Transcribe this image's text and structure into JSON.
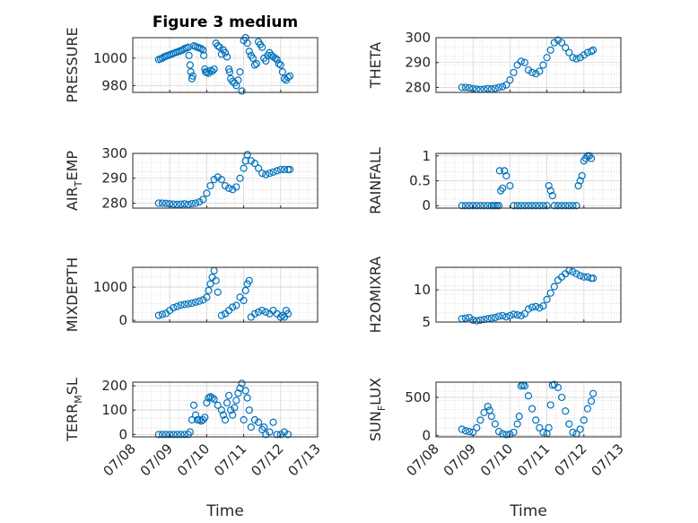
{
  "figure": {
    "title": "Figure 3 medium",
    "marker_color": "#0072BD"
  },
  "chart_data": [
    {
      "type": "scatter",
      "ylabel": "PRESSURE",
      "ylim": [
        975,
        1015
      ],
      "yticks": [
        980,
        1000
      ],
      "xlim": [
        0,
        5
      ],
      "xticks": [
        0,
        1,
        2,
        3,
        4,
        5
      ],
      "xticklabels": [],
      "xlabel": "",
      "grid": true,
      "x": [
        0.7,
        0.75,
        0.8,
        0.85,
        0.9,
        0.95,
        1.0,
        1.05,
        1.1,
        1.15,
        1.2,
        1.25,
        1.3,
        1.35,
        1.4,
        1.45,
        1.5,
        1.52,
        1.55,
        1.57,
        1.6,
        1.62,
        1.65,
        1.7,
        1.75,
        1.8,
        1.85,
        1.9,
        1.92,
        1.95,
        1.97,
        2.0,
        2.05,
        2.1,
        2.15,
        2.2,
        2.25,
        2.3,
        2.35,
        2.4,
        2.45,
        2.5,
        2.55,
        2.6,
        2.62,
        2.65,
        2.7,
        2.75,
        2.8,
        2.85,
        2.9,
        2.95,
        3.0,
        3.05,
        3.1,
        3.15,
        3.2,
        3.25,
        3.3,
        3.35,
        3.4,
        3.45,
        3.5,
        3.55,
        3.6,
        3.65,
        3.7,
        3.75,
        3.8,
        3.85,
        3.9,
        3.95,
        4.0,
        4.05,
        4.1,
        4.15,
        4.2,
        4.25
      ],
      "y": [
        999,
        999.5,
        1000,
        1001,
        1001.5,
        1002,
        1002.5,
        1003,
        1003.5,
        1004,
        1004.5,
        1005,
        1005.5,
        1006,
        1007,
        1007.5,
        1008,
        1002,
        995,
        990,
        985,
        987,
        1009,
        1008.5,
        1008,
        1007.5,
        1007,
        1006,
        1002,
        992,
        990,
        989.5,
        989,
        991,
        990.5,
        992,
        1011,
        1009,
        1008,
        1003,
        1006,
        1004,
        1001,
        992,
        990,
        985,
        983,
        982,
        980,
        984,
        990,
        976,
        1013,
        1015,
        1011,
        1005,
        1002,
        1000,
        995,
        996,
        1012,
        1010,
        1008,
        1000,
        998,
        1002,
        1004,
        1002,
        1001,
        1000,
        999,
        996,
        995,
        990,
        985,
        984,
        986,
        987
      ]
    },
    {
      "type": "scatter",
      "ylabel": "THETA",
      "ylim": [
        278,
        300
      ],
      "yticks": [
        280,
        290,
        300
      ],
      "xlim": [
        0,
        5
      ],
      "xticks": [
        0,
        1,
        2,
        3,
        4,
        5
      ],
      "xticklabels": [],
      "xlabel": "",
      "grid": true,
      "x": [
        0.7,
        0.8,
        0.9,
        1.0,
        1.1,
        1.2,
        1.3,
        1.4,
        1.5,
        1.6,
        1.7,
        1.8,
        1.9,
        2.0,
        2.1,
        2.2,
        2.3,
        2.4,
        2.5,
        2.6,
        2.7,
        2.8,
        2.9,
        3.0,
        3.1,
        3.2,
        3.3,
        3.4,
        3.5,
        3.6,
        3.7,
        3.8,
        3.9,
        4.0,
        4.1,
        4.2,
        4.25
      ],
      "y": [
        280,
        280,
        279.8,
        279.5,
        279.3,
        279.2,
        279.3,
        279.5,
        279.4,
        279.6,
        280,
        280.3,
        281,
        283,
        286,
        289,
        290.5,
        290,
        287,
        286,
        285.5,
        286.5,
        289,
        292,
        295,
        298,
        299,
        298,
        296,
        294,
        292,
        291.5,
        292,
        293,
        294,
        294.5,
        295
      ]
    },
    {
      "type": "scatter",
      "ylabel": "AIR_T_EMP",
      "ylim": [
        278,
        300
      ],
      "yticks": [
        280,
        290,
        300
      ],
      "xlim": [
        0,
        5
      ],
      "xticks": [
        0,
        1,
        2,
        3,
        4,
        5
      ],
      "xticklabels": [],
      "xlabel": "",
      "grid": true,
      "x": [
        0.7,
        0.8,
        0.9,
        1.0,
        1.1,
        1.2,
        1.3,
        1.4,
        1.5,
        1.6,
        1.7,
        1.8,
        1.9,
        2.0,
        2.1,
        2.2,
        2.3,
        2.4,
        2.5,
        2.6,
        2.7,
        2.8,
        2.9,
        3.0,
        3.05,
        3.1,
        3.2,
        3.3,
        3.4,
        3.5,
        3.6,
        3.7,
        3.8,
        3.9,
        4.0,
        4.1,
        4.2,
        4.25
      ],
      "y": [
        280,
        280,
        279.9,
        279.7,
        279.6,
        279.5,
        279.6,
        279.7,
        279.5,
        279.8,
        280,
        280.5,
        281.5,
        284,
        287,
        289.5,
        290.5,
        289.5,
        287,
        286,
        285.5,
        286.5,
        290,
        294,
        297,
        299.5,
        297,
        296,
        294,
        292,
        291.5,
        292,
        292.5,
        293,
        293.5,
        293.5,
        293.5,
        293.5
      ]
    },
    {
      "type": "scatter",
      "ylabel": "RAINFALL",
      "ylim": [
        -0.05,
        1.05
      ],
      "yticks": [
        0,
        0.5,
        1
      ],
      "xlim": [
        0,
        5
      ],
      "xticks": [
        0,
        1,
        2,
        3,
        4,
        5
      ],
      "xticklabels": [],
      "xlabel": "",
      "grid": true,
      "x": [
        0.7,
        0.8,
        0.9,
        1.0,
        1.1,
        1.2,
        1.3,
        1.4,
        1.5,
        1.55,
        1.6,
        1.65,
        1.7,
        1.72,
        1.75,
        1.8,
        1.85,
        1.9,
        2.0,
        2.1,
        2.2,
        2.3,
        2.4,
        2.5,
        2.6,
        2.7,
        2.8,
        2.9,
        3.0,
        3.05,
        3.1,
        3.15,
        3.2,
        3.3,
        3.4,
        3.5,
        3.6,
        3.7,
        3.8,
        3.85,
        3.9,
        3.95,
        4.0,
        4.05,
        4.1,
        4.15,
        4.2
      ],
      "y": [
        0,
        0,
        0,
        0,
        0,
        0,
        0,
        0,
        0,
        0,
        0,
        0,
        0,
        0.7,
        0.3,
        0.35,
        0.7,
        0.6,
        0.4,
        0,
        0,
        0,
        0,
        0,
        0,
        0,
        0,
        0,
        0,
        0.4,
        0.3,
        0.2,
        0,
        0,
        0,
        0,
        0,
        0,
        0,
        0.4,
        0.5,
        0.6,
        0.9,
        0.95,
        1.0,
        1.0,
        0.95
      ]
    },
    {
      "type": "scatter",
      "ylabel": "MIXDEPTH",
      "ylim": [
        -50,
        1600
      ],
      "yticks": [
        0,
        1000
      ],
      "xlim": [
        0,
        5
      ],
      "xticks": [
        0,
        1,
        2,
        3,
        4,
        5
      ],
      "xticklabels": [],
      "xlabel": "",
      "grid": true,
      "x": [
        0.7,
        0.8,
        0.9,
        1.0,
        1.1,
        1.2,
        1.3,
        1.4,
        1.5,
        1.6,
        1.7,
        1.8,
        1.9,
        2.0,
        2.05,
        2.1,
        2.15,
        2.2,
        2.25,
        2.3,
        2.4,
        2.5,
        2.6,
        2.7,
        2.8,
        2.9,
        3.0,
        3.05,
        3.1,
        3.15,
        3.2,
        3.3,
        3.4,
        3.5,
        3.6,
        3.7,
        3.8,
        3.9,
        4.0,
        4.05,
        4.1,
        4.15,
        4.2
      ],
      "y": [
        150,
        180,
        210,
        300,
        380,
        420,
        460,
        480,
        500,
        520,
        550,
        580,
        620,
        700,
        900,
        1100,
        1300,
        1500,
        1200,
        850,
        150,
        200,
        300,
        400,
        450,
        700,
        600,
        900,
        1100,
        1200,
        100,
        200,
        250,
        300,
        250,
        200,
        300,
        200,
        100,
        150,
        100,
        300,
        200
      ]
    },
    {
      "type": "scatter",
      "ylabel": "H2OMIXRA",
      "ylim": [
        5,
        13.5
      ],
      "yticks": [
        5,
        10
      ],
      "xlim": [
        0,
        5
      ],
      "xticks": [
        0,
        1,
        2,
        3,
        4,
        5
      ],
      "xticklabels": [],
      "xlabel": "",
      "grid": true,
      "x": [
        0.7,
        0.8,
        0.9,
        1.0,
        1.1,
        1.2,
        1.3,
        1.4,
        1.5,
        1.6,
        1.7,
        1.8,
        1.9,
        2.0,
        2.1,
        2.2,
        2.3,
        2.4,
        2.5,
        2.6,
        2.7,
        2.8,
        2.9,
        3.0,
        3.1,
        3.2,
        3.3,
        3.4,
        3.5,
        3.6,
        3.7,
        3.8,
        3.9,
        4.0,
        4.1,
        4.2,
        4.25
      ],
      "y": [
        5.5,
        5.6,
        5.7,
        5.3,
        5.2,
        5.3,
        5.4,
        5.5,
        5.6,
        5.7,
        5.9,
        6.0,
        5.8,
        6.0,
        6.2,
        6.1,
        6.0,
        6.3,
        7.0,
        7.3,
        7.4,
        7.2,
        7.5,
        8.5,
        9.5,
        10.5,
        11.5,
        12.0,
        12.5,
        13.0,
        12.8,
        12.5,
        12.2,
        12.0,
        12.0,
        11.8,
        11.8
      ]
    },
    {
      "type": "scatter",
      "ylabel": "TERR_M_SL",
      "ylim": [
        -10,
        215
      ],
      "yticks": [
        0,
        100,
        200
      ],
      "xlim": [
        0,
        5
      ],
      "xticks": [
        0,
        1,
        2,
        3,
        4,
        5
      ],
      "xticklabels": [
        "07/08",
        "07/09",
        "07/10",
        "07/11",
        "07/12",
        "07/13"
      ],
      "xlabel": "Time",
      "grid": true,
      "x": [
        0.7,
        0.8,
        0.9,
        1.0,
        1.1,
        1.2,
        1.3,
        1.4,
        1.5,
        1.55,
        1.6,
        1.65,
        1.7,
        1.75,
        1.8,
        1.85,
        1.9,
        1.95,
        2.0,
        2.05,
        2.1,
        2.15,
        2.2,
        2.3,
        2.4,
        2.45,
        2.5,
        2.55,
        2.6,
        2.65,
        2.7,
        2.75,
        2.8,
        2.85,
        2.9,
        2.95,
        3.0,
        3.05,
        3.1,
        3.15,
        3.2,
        3.3,
        3.4,
        3.5,
        3.55,
        3.6,
        3.7,
        3.8,
        3.9,
        4.0,
        4.1,
        4.2
      ],
      "y": [
        0,
        0,
        0,
        0,
        0,
        0,
        0,
        0,
        0,
        10,
        60,
        120,
        80,
        60,
        60,
        55,
        60,
        70,
        130,
        150,
        155,
        150,
        145,
        120,
        100,
        80,
        60,
        130,
        160,
        100,
        80,
        110,
        140,
        170,
        190,
        210,
        60,
        180,
        150,
        100,
        30,
        60,
        50,
        20,
        30,
        0,
        10,
        50,
        0,
        0,
        10,
        0
      ]
    },
    {
      "type": "scatter",
      "ylabel": "SUN_F_LUX",
      "ylim": [
        -20,
        700
      ],
      "yticks": [
        0,
        500
      ],
      "xlim": [
        0,
        5
      ],
      "xticks": [
        0,
        1,
        2,
        3,
        4,
        5
      ],
      "xticklabels": [
        "07/08",
        "07/09",
        "07/10",
        "07/11",
        "07/12",
        "07/13"
      ],
      "xlabel": "Time",
      "grid": true,
      "x": [
        0.7,
        0.8,
        0.9,
        1.0,
        1.1,
        1.2,
        1.3,
        1.4,
        1.45,
        1.5,
        1.6,
        1.7,
        1.8,
        1.9,
        2.0,
        2.1,
        2.2,
        2.25,
        2.3,
        2.35,
        2.4,
        2.5,
        2.6,
        2.7,
        2.8,
        2.9,
        3.0,
        3.05,
        3.1,
        3.15,
        3.2,
        3.3,
        3.4,
        3.5,
        3.6,
        3.7,
        3.8,
        3.9,
        4.0,
        4.1,
        4.2,
        4.25
      ],
      "y": [
        80,
        60,
        50,
        40,
        100,
        200,
        300,
        380,
        330,
        250,
        150,
        50,
        20,
        10,
        15,
        40,
        150,
        250,
        650,
        660,
        650,
        520,
        350,
        200,
        100,
        40,
        20,
        100,
        400,
        660,
        670,
        630,
        500,
        320,
        150,
        40,
        20,
        80,
        200,
        350,
        450,
        550
      ]
    }
  ]
}
